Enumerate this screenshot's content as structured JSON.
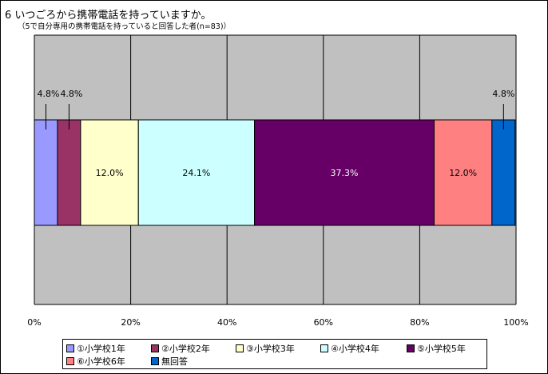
{
  "title": "6 いつごろから携帯電話を持っていますか。",
  "subtitle": "（5で自分専用の携帯電話を持っていると回答した者(n=83)）",
  "chart_data": {
    "type": "bar",
    "orientation": "horizontal-stacked-100",
    "xlim": [
      0,
      100
    ],
    "x_ticks": [
      "0%",
      "20%",
      "40%",
      "60%",
      "80%",
      "100%"
    ],
    "grid": true,
    "legend_position": "bottom",
    "series": [
      {
        "name": "①小学校1年",
        "value": 4.8,
        "label": "4.8%",
        "color": "#9999ff",
        "label_outside": true
      },
      {
        "name": "②小学校2年",
        "value": 4.8,
        "label": "4.8%",
        "color": "#993366",
        "label_outside": true
      },
      {
        "name": "③小学校3年",
        "value": 12.0,
        "label": "12.0%",
        "color": "#ffffcc",
        "label_outside": false
      },
      {
        "name": "④小学校4年",
        "value": 24.1,
        "label": "24.1%",
        "color": "#ccffff",
        "label_outside": false
      },
      {
        "name": "⑤小学校5年",
        "value": 37.3,
        "label": "37.3%",
        "color": "#660066",
        "label_outside": false
      },
      {
        "name": "⑥小学校6年",
        "value": 12.0,
        "label": "12.0%",
        "color": "#ff8080",
        "label_outside": false
      },
      {
        "name": "無回答",
        "value": 4.8,
        "label": "4.8%",
        "color": "#0066cc",
        "label_outside": true
      }
    ]
  },
  "colors": {
    "plot_background": "#c0c0c0",
    "gridline": "#000000"
  }
}
